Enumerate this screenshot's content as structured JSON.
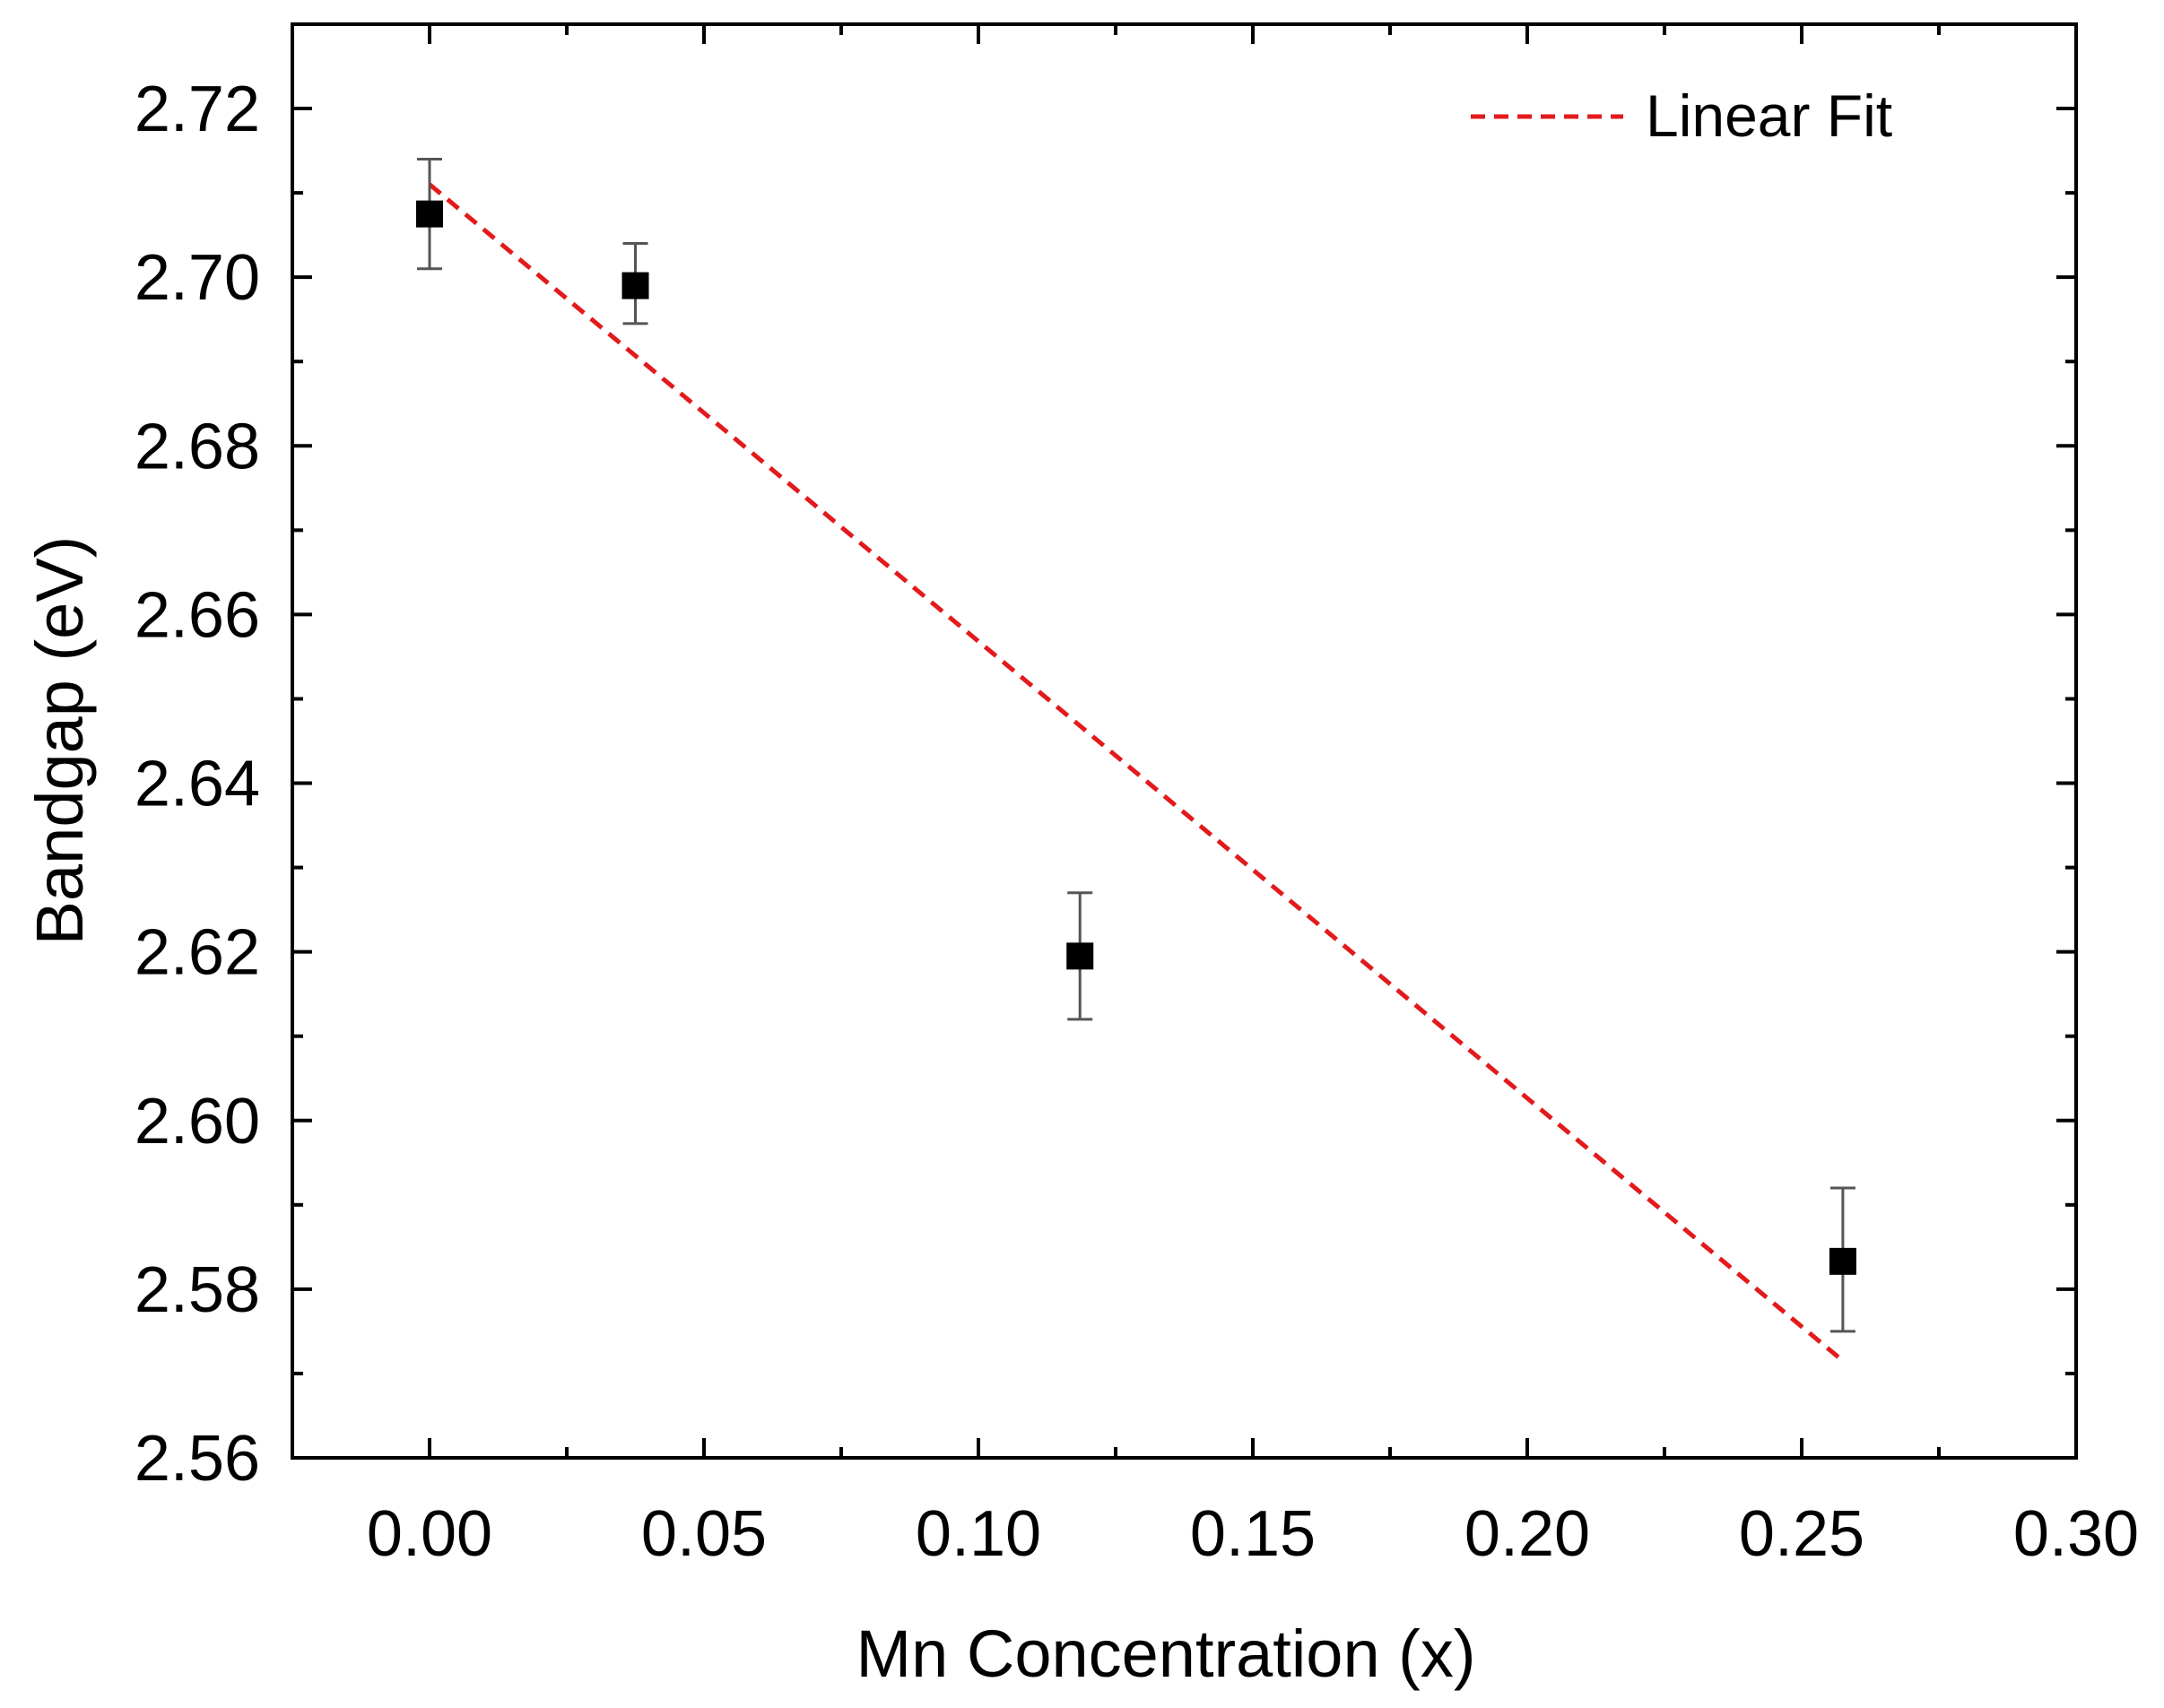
{
  "chart_data": {
    "type": "scatter",
    "title": "",
    "xlabel": "Mn Concentration (x)",
    "ylabel": "Bandgap (eV)",
    "xlim": [
      -0.025,
      0.3
    ],
    "ylim": [
      2.56,
      2.73
    ],
    "x_ticks": [
      "0.00",
      "0.05",
      "0.10",
      "0.15",
      "0.20",
      "0.25",
      "0.30"
    ],
    "y_ticks": [
      "2.56",
      "2.58",
      "2.60",
      "2.62",
      "2.64",
      "2.66",
      "2.68",
      "2.70",
      "2.72"
    ],
    "grid": false,
    "legend_position": "top-right",
    "series": [
      {
        "type": "scatter",
        "marker": "square",
        "color": "#000000",
        "points": [
          {
            "x": 0.0,
            "y": 2.7075,
            "err_low": 2.701,
            "err_high": 2.714
          },
          {
            "x": 0.0375,
            "y": 2.699,
            "err_low": 2.6945,
            "err_high": 2.704
          },
          {
            "x": 0.1185,
            "y": 2.6195,
            "err_low": 2.612,
            "err_high": 2.627
          },
          {
            "x": 0.2575,
            "y": 2.5833,
            "err_low": 2.575,
            "err_high": 2.592
          }
        ]
      },
      {
        "name": "Linear Fit",
        "type": "line",
        "style": "dashed",
        "color": "#e31a1c",
        "points": [
          {
            "x": 0.0,
            "y": 2.711
          },
          {
            "x": 0.2575,
            "y": 2.5715
          }
        ]
      }
    ]
  }
}
